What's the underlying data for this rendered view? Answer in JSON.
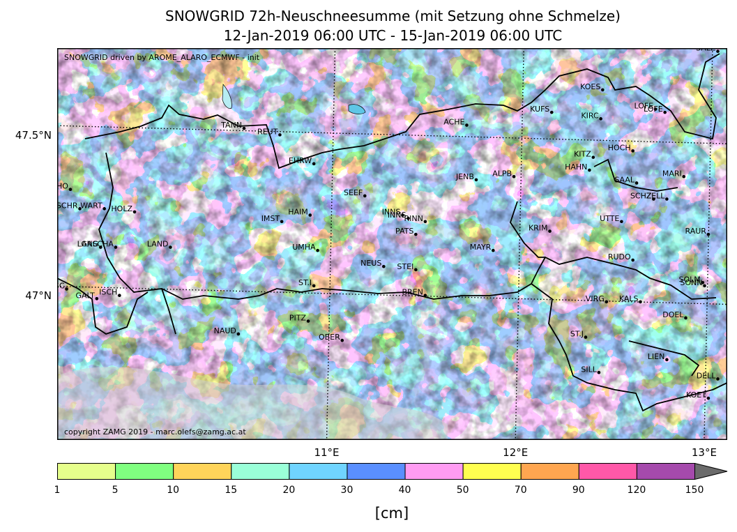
{
  "title": {
    "line1": "SNOWGRID 72h-Neuschneesumme (mit Setzung ohne Schmelze)",
    "line2": "12-Jan-2019 06:00 UTC - 15-Jan-2019 06:00 UTC"
  },
  "map": {
    "model_note": "SNOWGRID driven by AROME_ALARO_ECMWF - init",
    "copyright": "copyright ZAMG 2019 - marc.olefs@zamg.ac.at",
    "extent": {
      "lon_min": 9.55,
      "lon_max": 13.1,
      "lat_min": 46.53,
      "lat_max": 47.75
    },
    "lat_labels": [
      {
        "value": 47.5,
        "label": "47.5°N"
      },
      {
        "value": 47.0,
        "label": "47°N"
      }
    ],
    "lon_labels": [
      {
        "value": 11.0,
        "label": "11°E"
      },
      {
        "value": 12.0,
        "label": "12°E"
      },
      {
        "value": 13.0,
        "label": "13°E"
      }
    ],
    "stations": [
      {
        "name": "SALZ",
        "lon": 13.05,
        "lat": 47.74
      },
      {
        "name": "KOES",
        "lon": 12.44,
        "lat": 47.62
      },
      {
        "name": "LOFE",
        "lon": 12.72,
        "lat": 47.56
      },
      {
        "name": "LOFE",
        "lon": 12.77,
        "lat": 47.55
      },
      {
        "name": "KIRC",
        "lon": 12.43,
        "lat": 47.53
      },
      {
        "name": "KUFS",
        "lon": 12.17,
        "lat": 47.55
      },
      {
        "name": "ACHE",
        "lon": 11.72,
        "lat": 47.51
      },
      {
        "name": "TANN",
        "lon": 10.54,
        "lat": 47.5
      },
      {
        "name": "REUT",
        "lon": 10.73,
        "lat": 47.48
      },
      {
        "name": "HOCH",
        "lon": 12.6,
        "lat": 47.43
      },
      {
        "name": "KITZ",
        "lon": 12.39,
        "lat": 47.41
      },
      {
        "name": "HAHN",
        "lon": 12.37,
        "lat": 47.37
      },
      {
        "name": "EHRW",
        "lon": 10.91,
        "lat": 47.39
      },
      {
        "name": "ALPB",
        "lon": 11.97,
        "lat": 47.35
      },
      {
        "name": "JENB",
        "lon": 11.77,
        "lat": 47.34
      },
      {
        "name": "MARI",
        "lon": 12.87,
        "lat": 47.35
      },
      {
        "name": "SAAL",
        "lon": 12.62,
        "lat": 47.33
      },
      {
        "name": "SCHO",
        "lon": 9.62,
        "lat": 47.31
      },
      {
        "name": "SEEF",
        "lon": 11.18,
        "lat": 47.29
      },
      {
        "name": "SCHZ",
        "lon": 12.71,
        "lat": 47.28
      },
      {
        "name": "ZELL",
        "lon": 12.78,
        "lat": 47.28
      },
      {
        "name": "SCHR",
        "lon": 9.67,
        "lat": 47.25
      },
      {
        "name": "WART",
        "lon": 9.8,
        "lat": 47.25
      },
      {
        "name": "HOLZ",
        "lon": 9.96,
        "lat": 47.24
      },
      {
        "name": "HAIM",
        "lon": 10.89,
        "lat": 47.23
      },
      {
        "name": "INNS",
        "lon": 11.38,
        "lat": 47.23
      },
      {
        "name": "INNS",
        "lon": 11.41,
        "lat": 47.22
      },
      {
        "name": "IMST",
        "lon": 10.74,
        "lat": 47.21
      },
      {
        "name": "RINN",
        "lon": 11.5,
        "lat": 47.21
      },
      {
        "name": "UTTE",
        "lon": 12.54,
        "lat": 47.21
      },
      {
        "name": "KRIM",
        "lon": 12.16,
        "lat": 47.18
      },
      {
        "name": "RAUR",
        "lon": 13.0,
        "lat": 47.17
      },
      {
        "name": "PATS",
        "lon": 11.45,
        "lat": 47.17
      },
      {
        "name": "LANG",
        "lon": 9.78,
        "lat": 47.13
      },
      {
        "name": "GASCHA",
        "lon": 9.86,
        "lat": 47.13
      },
      {
        "name": "LAND",
        "lon": 10.15,
        "lat": 47.13
      },
      {
        "name": "UMHA",
        "lon": 10.93,
        "lat": 47.12
      },
      {
        "name": "MAYR",
        "lon": 11.86,
        "lat": 47.12
      },
      {
        "name": "RUDO",
        "lon": 12.6,
        "lat": 47.09
      },
      {
        "name": "NEUS",
        "lon": 11.28,
        "lat": 47.07
      },
      {
        "name": "STEI",
        "lon": 11.45,
        "lat": 47.06
      },
      {
        "name": "SOLM",
        "lon": 12.97,
        "lat": 47.02
      },
      {
        "name": "SONN",
        "lon": 12.98,
        "lat": 47.01
      },
      {
        "name": "GASC",
        "lon": 9.6,
        "lat": 47.0
      },
      {
        "name": "ST.I",
        "lon": 10.91,
        "lat": 47.01
      },
      {
        "name": "GALT",
        "lon": 9.76,
        "lat": 46.97
      },
      {
        "name": "ISCH",
        "lon": 9.88,
        "lat": 46.98
      },
      {
        "name": "BREN",
        "lon": 11.5,
        "lat": 46.98
      },
      {
        "name": "VIRG",
        "lon": 12.46,
        "lat": 46.96
      },
      {
        "name": "KALS",
        "lon": 12.64,
        "lat": 46.96
      },
      {
        "name": "DOEL",
        "lon": 12.88,
        "lat": 46.91
      },
      {
        "name": "PITZ",
        "lon": 10.88,
        "lat": 46.9
      },
      {
        "name": "NAUD",
        "lon": 10.51,
        "lat": 46.86
      },
      {
        "name": "ST.J",
        "lon": 12.35,
        "lat": 46.85
      },
      {
        "name": "OBER",
        "lon": 11.06,
        "lat": 46.84
      },
      {
        "name": "LIEN",
        "lon": 12.78,
        "lat": 46.78
      },
      {
        "name": "SILL",
        "lon": 12.42,
        "lat": 46.74
      },
      {
        "name": "DELL",
        "lon": 13.05,
        "lat": 46.72
      },
      {
        "name": "KOET",
        "lon": 13.0,
        "lat": 46.66
      }
    ]
  },
  "colorbar": {
    "unit": "[cm]",
    "bounds": [
      "1",
      "5",
      "10",
      "15",
      "20",
      "30",
      "40",
      "50",
      "70",
      "90",
      "120",
      "150"
    ],
    "colors": [
      "#e6ff8c",
      "#80ff80",
      "#ffd45a",
      "#9affd8",
      "#70d4ff",
      "#5a8fff",
      "#ff9cf2",
      "#ffff50",
      "#ffa650",
      "#ff58a8",
      "#a54aac"
    ],
    "extend_color": "#6b6b6b"
  },
  "colors": {
    "land_low": "#c9c9c9",
    "border": "#000000"
  }
}
